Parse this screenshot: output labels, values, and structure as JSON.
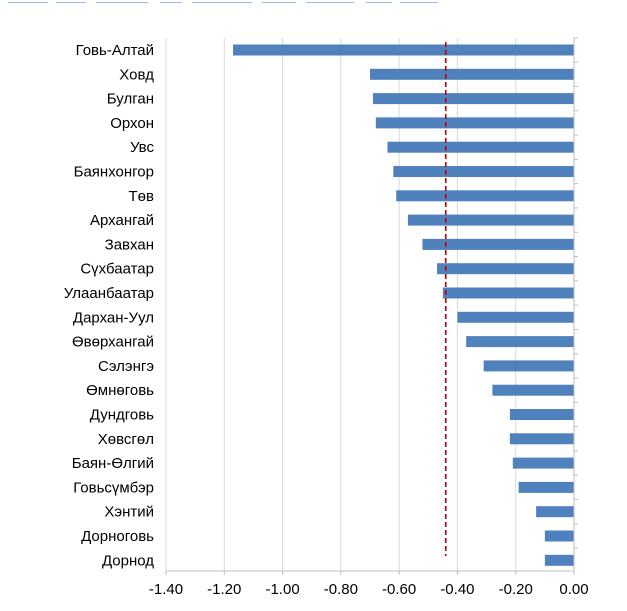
{
  "chart_data": {
    "type": "bar",
    "orientation": "horizontal",
    "categories": [
      "Говь-Алтай",
      "Ховд",
      "Булган",
      "Орхон",
      "Увс",
      "Баянхонгор",
      "Төв",
      "Архангай",
      "Завхан",
      "Сүхбаатар",
      "Улаанбаатар",
      "Дархан-Уул",
      "Өвөрхангай",
      "Сэлэнгэ",
      "Өмнөговь",
      "Дундговь",
      "Хөвсгөл",
      "Баян-Өлгий",
      "Говьсүмбэр",
      "Хэнтий",
      "Дорноговь",
      "Дорнод"
    ],
    "values": [
      -1.17,
      -0.7,
      -0.69,
      -0.68,
      -0.64,
      -0.62,
      -0.61,
      -0.57,
      -0.52,
      -0.47,
      -0.45,
      -0.4,
      -0.37,
      -0.31,
      -0.28,
      -0.22,
      -0.22,
      -0.21,
      -0.19,
      -0.13,
      -0.1,
      -0.1
    ],
    "x_tick_labels": [
      "-1.40",
      "-1.20",
      "-1.00",
      "-0.80",
      "-0.60",
      "-0.40",
      "-0.20",
      "0.00"
    ],
    "xlim": [
      -1.4,
      0.0
    ],
    "reference_line": {
      "value": -0.44,
      "style": "dashed",
      "color": "#c00000"
    },
    "bar_color": "#4f81bd",
    "grid": true,
    "title": "",
    "xlabel": "",
    "ylabel": ""
  }
}
